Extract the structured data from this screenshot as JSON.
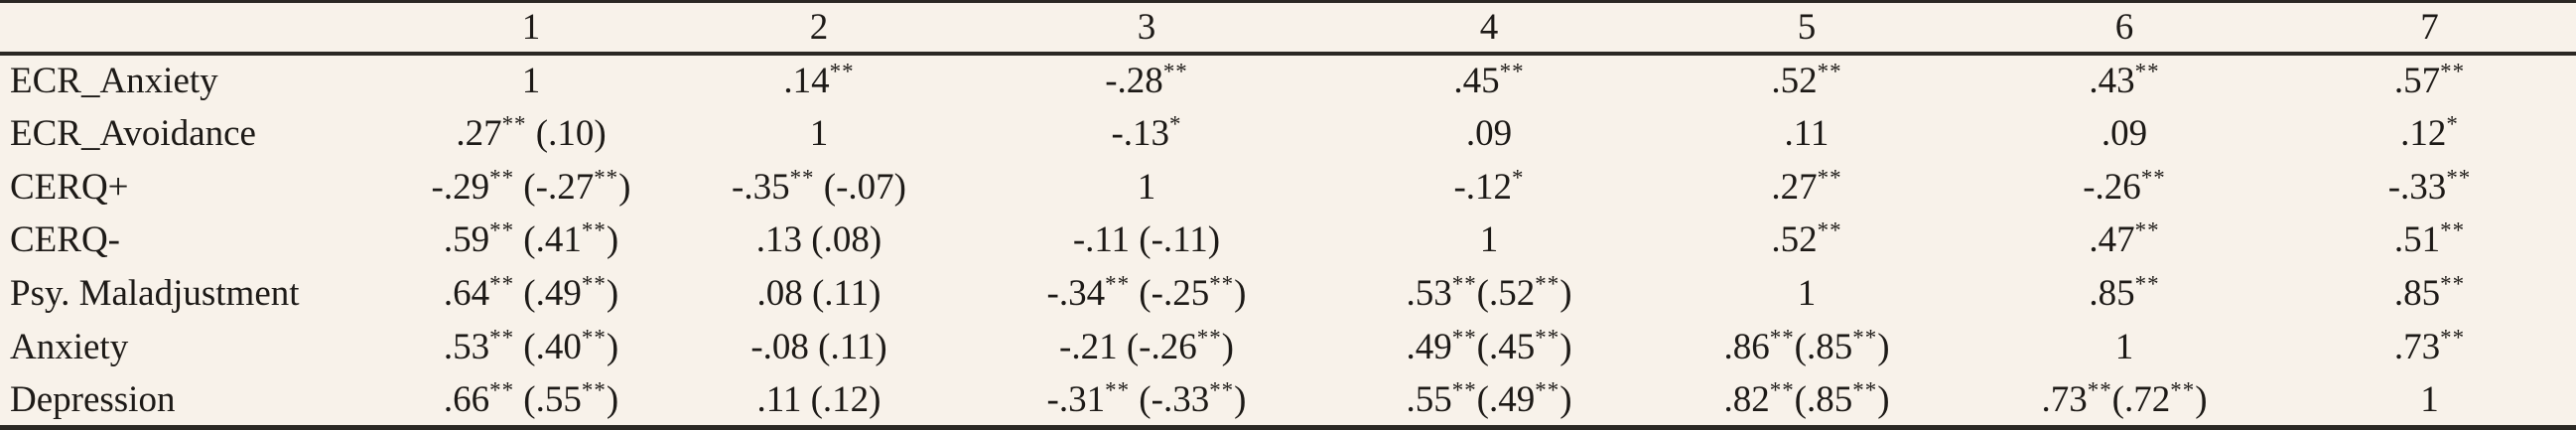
{
  "colors": {
    "background": "#f8f2ea",
    "text": "#1d1a17",
    "rule": "#2b2824"
  },
  "table": {
    "header": [
      "",
      "1",
      "2",
      "3",
      "4",
      "5",
      "6",
      "7"
    ],
    "rows": [
      {
        "label": "ECR_Anxiety",
        "cells": [
          "1",
          ".14**",
          "-.28**",
          ".45**",
          ".52**",
          ".43**",
          ".57**"
        ]
      },
      {
        "label": "ECR_Avoidance",
        "cells": [
          ".27** (.10)",
          "1",
          "-.13*",
          ".09",
          ".11",
          ".09",
          ".12*"
        ]
      },
      {
        "label": "CERQ+",
        "cells": [
          "-.29** (-.27**)",
          "-.35** (-.07)",
          "1",
          "-.12*",
          ".27**",
          "-.26**",
          "-.33**"
        ]
      },
      {
        "label": "CERQ-",
        "cells": [
          ".59** (.41**)",
          ".13 (.08)",
          "-.11 (-.11)",
          "1",
          ".52**",
          ".47**",
          ".51**"
        ]
      },
      {
        "label": "Psy. Maladjustment",
        "cells": [
          ".64** (.49**)",
          ".08 (.11)",
          "-.34** (-.25**)",
          ".53**(.52**)",
          "1",
          ".85**",
          ".85**"
        ]
      },
      {
        "label": "Anxiety",
        "cells": [
          ".53** (.40**)",
          "-.08 (.11)",
          "-.21 (-.26**)",
          ".49**(.45**)",
          ".86**(.85**)",
          "1",
          ".73**"
        ]
      },
      {
        "label": "Depression",
        "cells": [
          ".66** (.55**)",
          ".11 (.12)",
          "-.31** (-.33**)",
          ".55**(.49**)",
          ".82**(.85**)",
          ".73**(.72**)",
          "1"
        ]
      }
    ]
  }
}
